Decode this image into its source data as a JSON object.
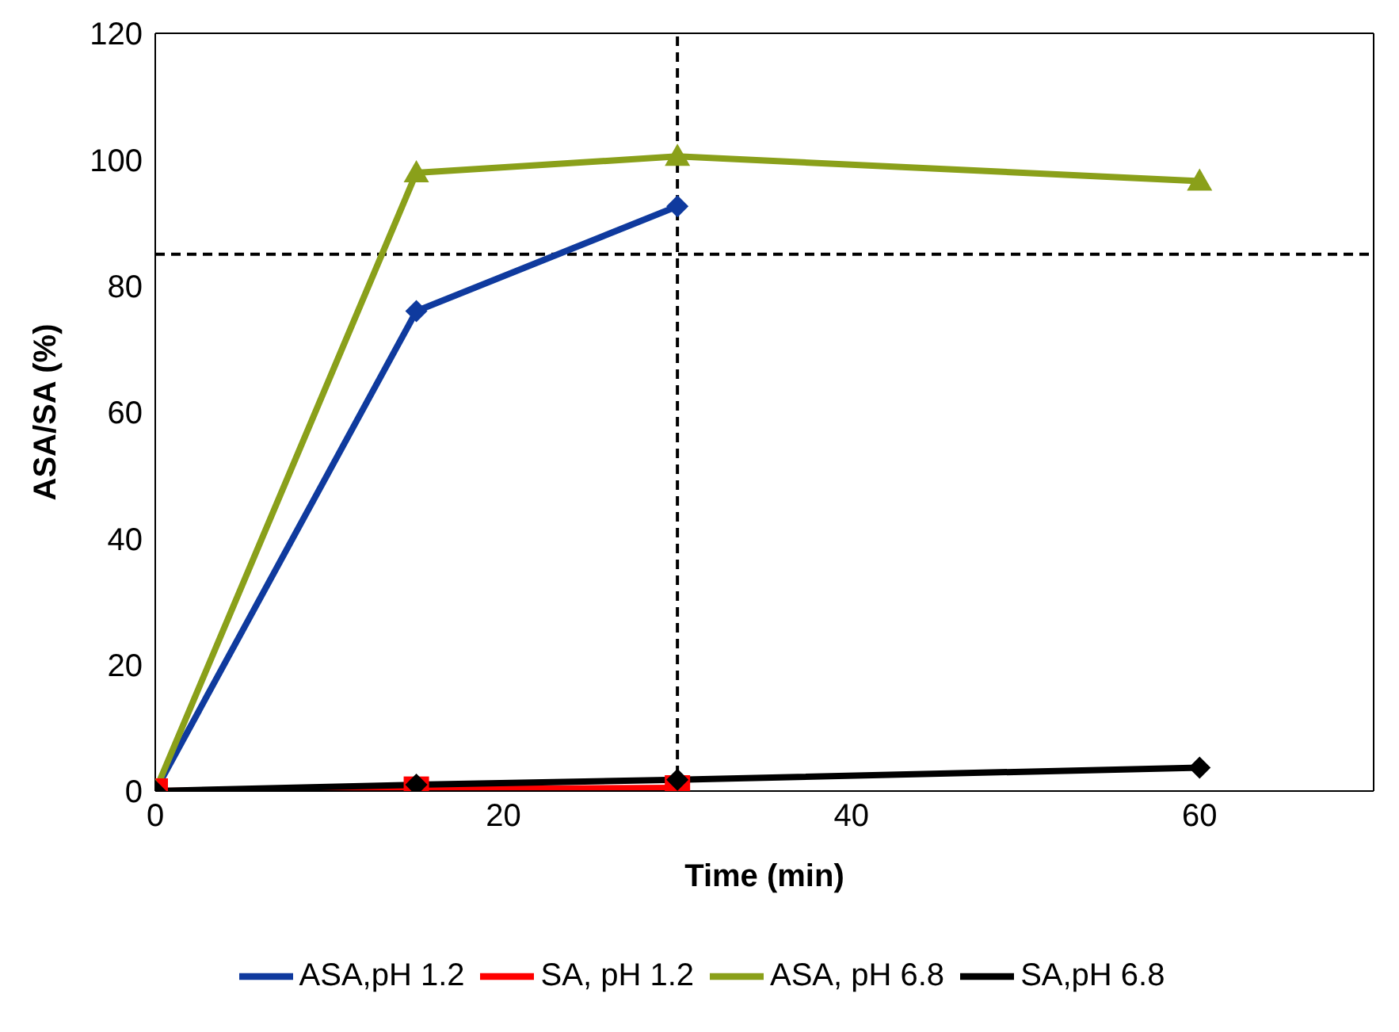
{
  "chart_data": {
    "type": "line",
    "xlabel": "Time (min)",
    "ylabel": "ASA/SA (%)",
    "xlim": [
      0,
      70
    ],
    "xticks": [
      0,
      20,
      40,
      60
    ],
    "ylim": [
      0,
      120
    ],
    "yticks": [
      0,
      20,
      40,
      60,
      80,
      100,
      120
    ],
    "legend": "bottom",
    "series": [
      {
        "name": "ASA,pH 1.2",
        "color": "#0f3a9e",
        "marker": "diamond",
        "x": [
          0,
          15,
          30
        ],
        "values": [
          0,
          76,
          92.6
        ]
      },
      {
        "name": "SA, pH 1.2",
        "color": "#ff0000",
        "marker": "square",
        "x": [
          0,
          15,
          30
        ],
        "values": [
          0,
          0.3,
          0.5
        ]
      },
      {
        "name": "ASA, pH 6.8",
        "color": "#8aa01a",
        "marker": "triangle",
        "x": [
          0,
          15,
          30,
          60
        ],
        "values": [
          0,
          97.9,
          100.5,
          96.6
        ]
      },
      {
        "name": "SA,pH 6.8",
        "color": "#000000",
        "marker": "diamond",
        "x": [
          0,
          15,
          30,
          60
        ],
        "values": [
          0,
          1,
          1.8,
          3.7
        ]
      }
    ],
    "ref_lines": [
      {
        "axis": "y",
        "value": 85,
        "line_style": "dashed",
        "color": "#000000"
      },
      {
        "axis": "x",
        "value": 30,
        "line_style": "dashed",
        "color": "#000000"
      }
    ]
  }
}
